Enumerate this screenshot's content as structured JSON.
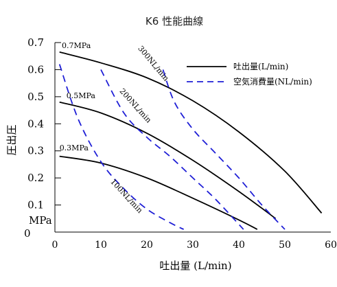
{
  "chart_data": {
    "type": "line",
    "title": "K6 性能曲線",
    "xlabel": "吐出量 (L/min)",
    "ylabel": "圧出圧",
    "y_unit": "MPa",
    "y_origin_label": "0",
    "xlim": [
      0,
      60
    ],
    "ylim": [
      0,
      0.7
    ],
    "x_ticks": [
      "0",
      "10",
      "20",
      "30",
      "40",
      "50",
      "60"
    ],
    "y_ticks": [
      "0.7",
      "0.6",
      "0.5",
      "0.4",
      "0.3",
      "0.2",
      "0.1"
    ],
    "legend": {
      "position": "top-right",
      "entries": [
        {
          "label": "吐出量(L/min)",
          "style": "solid",
          "color": "#000000"
        },
        {
          "label": "空気消費量(NL/min)",
          "style": "dashed",
          "color": "#1f1fd6"
        }
      ]
    },
    "series": [
      {
        "name": "0.7MPa",
        "style": "solid",
        "color": "#000000",
        "x": [
          1,
          10,
          20,
          30,
          40,
          50,
          58
        ],
        "y": [
          0.665,
          0.625,
          0.57,
          0.485,
          0.37,
          0.225,
          0.07
        ]
      },
      {
        "name": "0.5MPa",
        "style": "solid",
        "color": "#000000",
        "x": [
          1,
          10,
          20,
          30,
          40,
          48
        ],
        "y": [
          0.48,
          0.44,
          0.365,
          0.265,
          0.15,
          0.05
        ]
      },
      {
        "name": "0.3MPa",
        "style": "solid",
        "color": "#000000",
        "x": [
          1,
          10,
          20,
          30,
          40,
          44
        ],
        "y": [
          0.28,
          0.255,
          0.2,
          0.125,
          0.045,
          0.01
        ]
      },
      {
        "name": "300NL/min",
        "style": "dashed",
        "color": "#1f1fd6",
        "x": [
          23.5,
          26,
          30,
          35,
          40,
          45,
          50
        ],
        "y": [
          0.6,
          0.48,
          0.38,
          0.29,
          0.2,
          0.1,
          0.01
        ]
      },
      {
        "name": "200NL/min",
        "style": "dashed",
        "color": "#1f1fd6",
        "x": [
          10,
          15,
          20,
          25,
          30,
          35,
          41
        ],
        "y": [
          0.6,
          0.44,
          0.35,
          0.28,
          0.2,
          0.12,
          0.01
        ]
      },
      {
        "name": "100NL/min",
        "style": "dashed",
        "color": "#1f1fd6",
        "x": [
          1,
          5,
          10,
          15,
          20,
          25,
          28
        ],
        "y": [
          0.62,
          0.42,
          0.26,
          0.16,
          0.085,
          0.035,
          0.01
        ]
      }
    ],
    "curve_labels": [
      {
        "series": "0.7MPa",
        "text": "0.7MPa",
        "at": [
          1.5,
          0.68
        ],
        "angle": 0
      },
      {
        "series": "0.5MPa",
        "text": "0.5MPa",
        "at": [
          2.5,
          0.495
        ],
        "angle": 0
      },
      {
        "series": "0.3MPa",
        "text": "0.3MPa",
        "at": [
          1,
          0.302
        ],
        "angle": 0
      },
      {
        "series": "300NL/min",
        "text": "300NL/min",
        "at": [
          18,
          0.678
        ],
        "angle": 50
      },
      {
        "series": "200NL/min",
        "text": "200NL/min",
        "at": [
          14,
          0.52
        ],
        "angle": 48
      },
      {
        "series": "100NL/min",
        "text": "100NL/min",
        "at": [
          12,
          0.185
        ],
        "angle": 47
      }
    ]
  }
}
